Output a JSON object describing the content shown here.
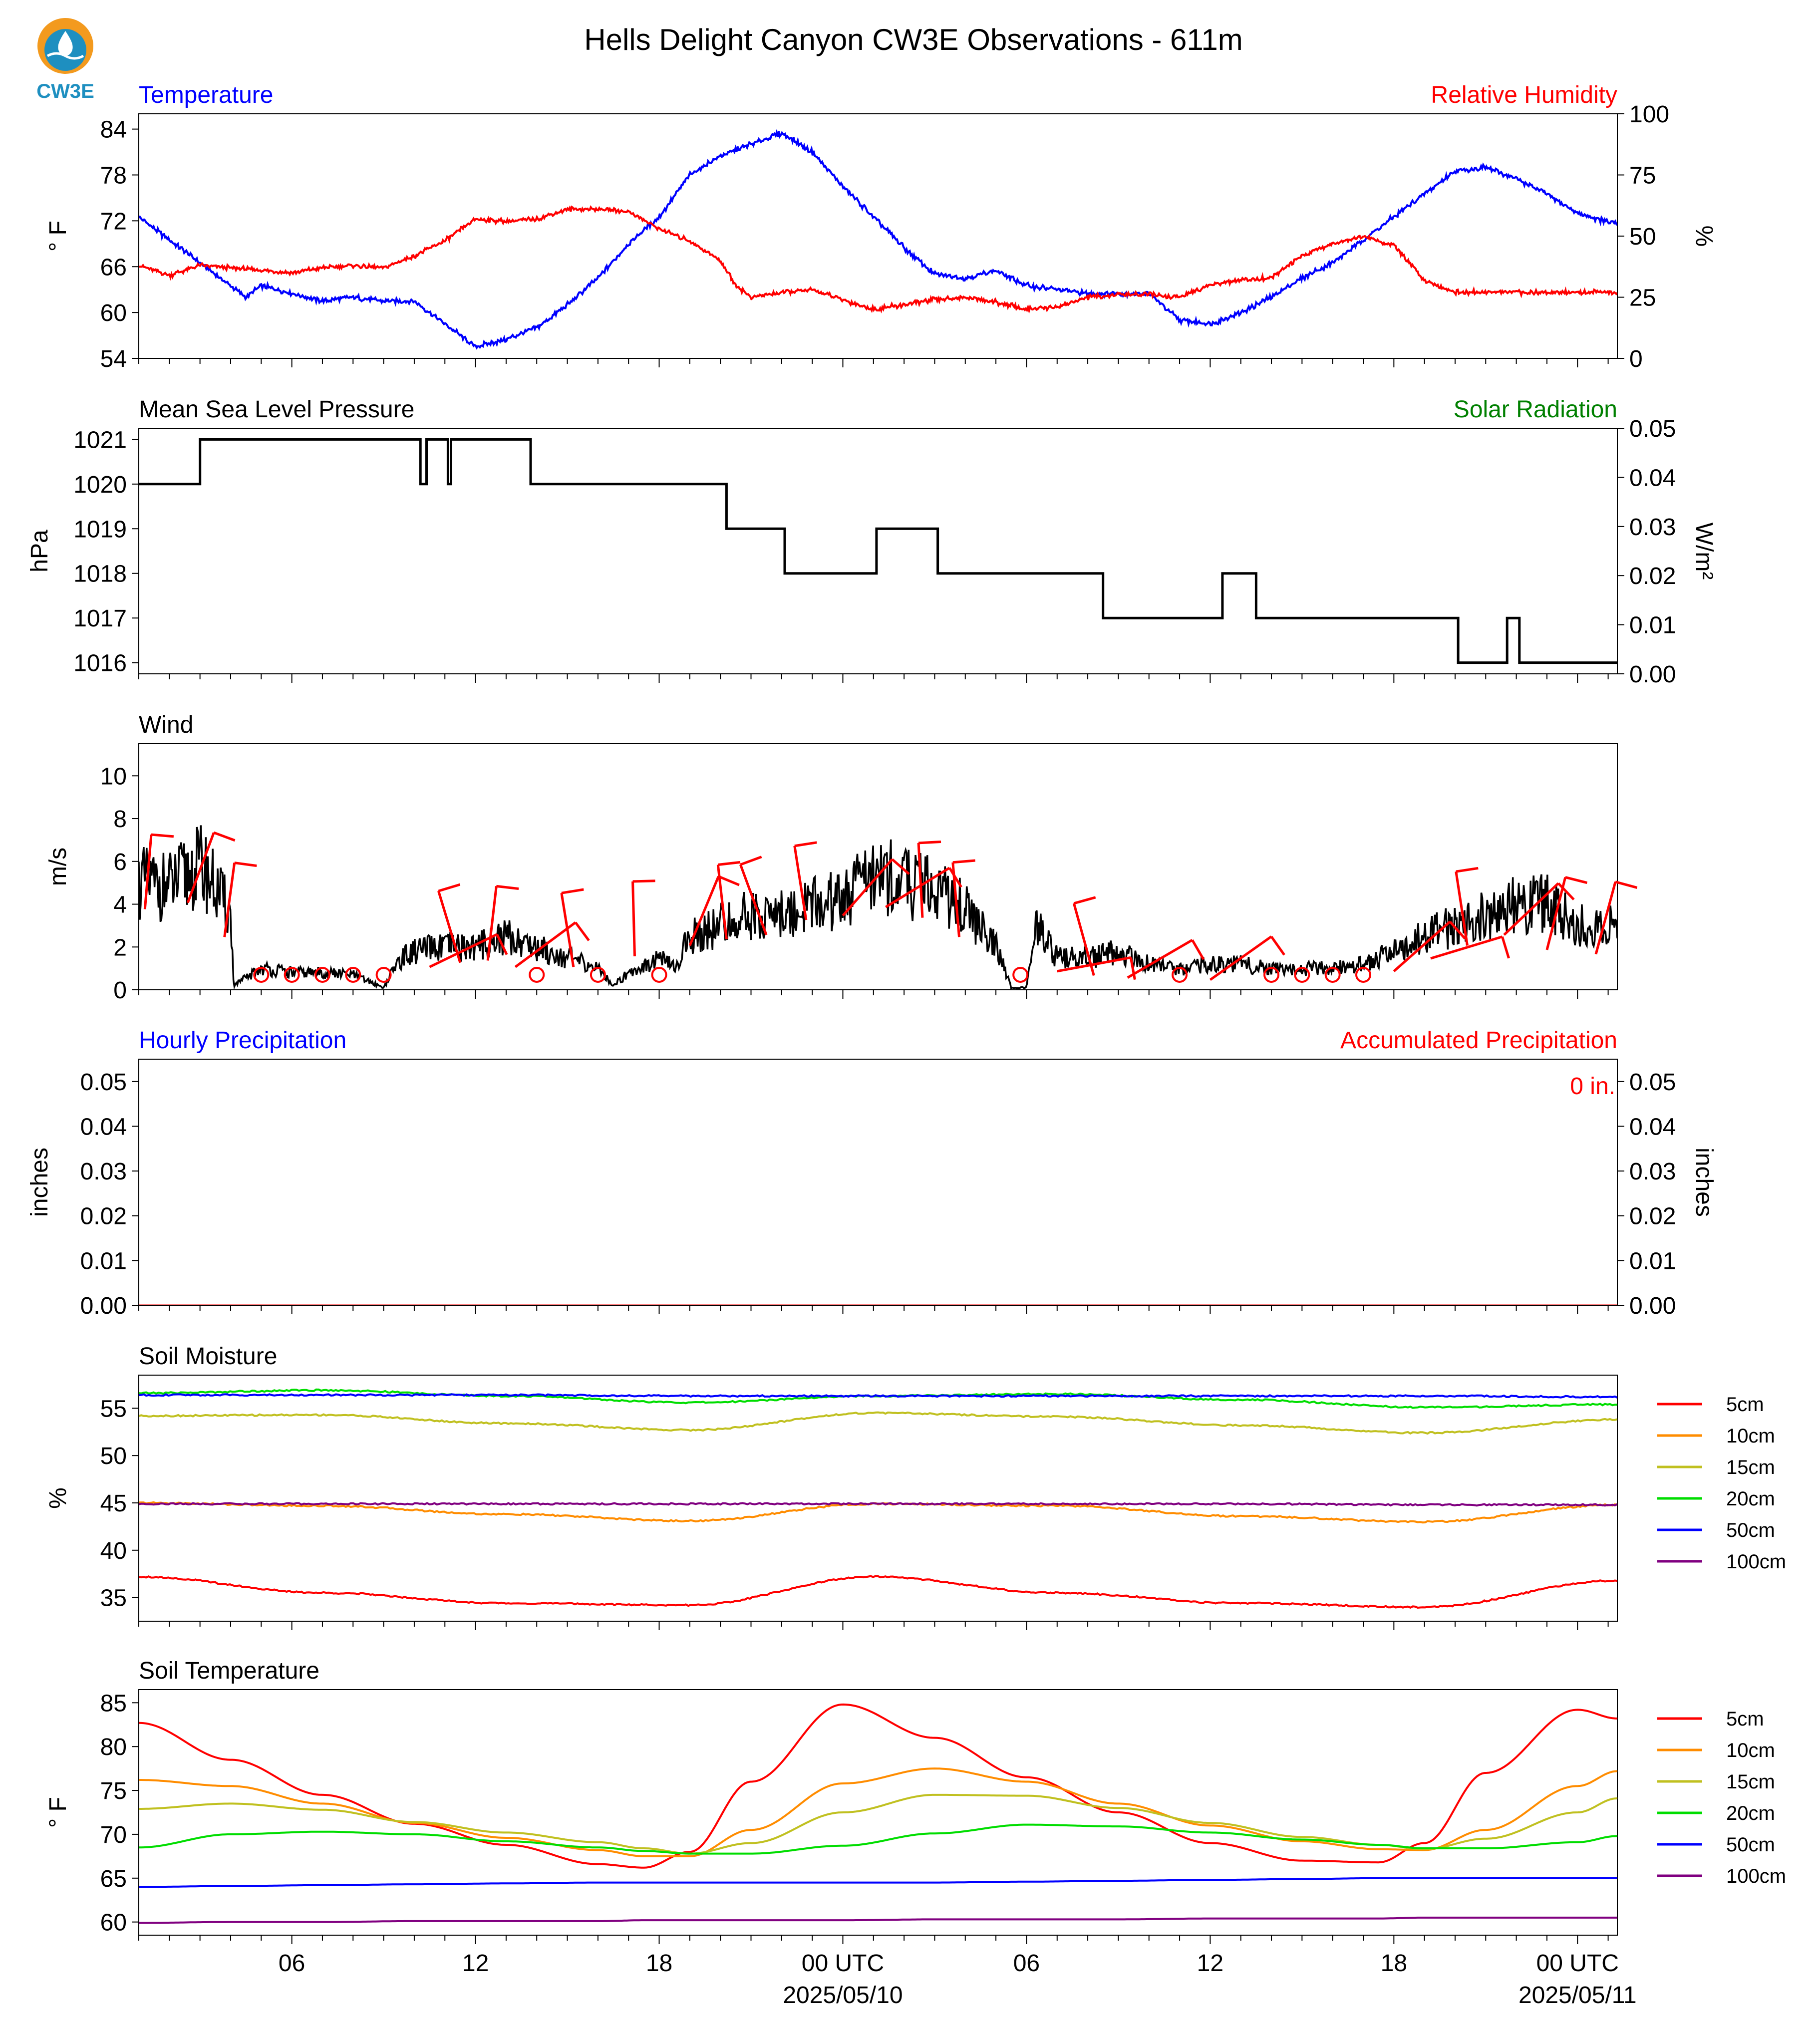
{
  "title": "Hells Delight Canyon CW3E Observations - 611m",
  "logo": {
    "text": "CW3E",
    "colors": {
      "orange": "#F39A1E",
      "blue": "#1E8FC0",
      "text": "#1E8FC0"
    }
  },
  "colors": {
    "blue": "#0000FF",
    "red": "#FF0000",
    "green": "#008000",
    "black": "#000000",
    "orange": "#FF8C00",
    "olive": "#C0C020",
    "lime": "#00DD00",
    "purple": "#800080"
  },
  "x_axis": {
    "domain_hours": [
      0,
      48.3
    ],
    "major_ticks": [
      {
        "hour": 5,
        "label": "06"
      },
      {
        "hour": 11,
        "label": "12"
      },
      {
        "hour": 17,
        "label": "18"
      },
      {
        "hour": 23,
        "label": "00 UTC"
      },
      {
        "hour": 29,
        "label": "06"
      },
      {
        "hour": 35,
        "label": "12"
      },
      {
        "hour": 41,
        "label": "18"
      },
      {
        "hour": 47,
        "label": "00 UTC"
      }
    ],
    "date_labels": [
      {
        "hour": 23,
        "label": "2025/05/10"
      },
      {
        "hour": 47,
        "label": "2025/05/11"
      }
    ]
  },
  "chart_data": [
    {
      "type": "line",
      "panel": "temperature_rh",
      "title_left": "Temperature",
      "title_right": "Relative Humidity",
      "ylabel_left": "° F",
      "ylabel_right": "%",
      "ylim_left": [
        54,
        86
      ],
      "yticks_left": [
        54,
        60,
        66,
        72,
        78,
        84
      ],
      "ylim_right": [
        0,
        100
      ],
      "yticks_right": [
        0,
        25,
        50,
        75,
        100
      ],
      "series": [
        {
          "name": "Temperature",
          "color": "#0000FF",
          "axis": "left",
          "x": [
            0,
            1,
            2,
            3,
            3.5,
            4,
            5,
            6,
            7,
            8,
            9,
            10,
            11,
            12,
            13,
            14,
            15,
            16,
            17,
            18,
            19,
            20,
            21,
            22,
            23,
            24,
            25,
            26,
            27,
            28,
            29,
            30,
            31,
            32,
            33,
            34,
            35,
            36,
            37,
            38,
            39,
            40,
            41,
            42,
            43,
            44,
            45,
            46,
            47,
            48.3
          ],
          "y": [
            72.5,
            69.5,
            66.5,
            63.5,
            62,
            63.5,
            62.5,
            61.5,
            62,
            61.5,
            61.5,
            58.5,
            55.5,
            56.5,
            58,
            61,
            64.5,
            69,
            72.5,
            78,
            80.5,
            82,
            83.5,
            81,
            76.5,
            72.5,
            68.5,
            65,
            64.5,
            65.5,
            63.5,
            63,
            62.5,
            62.5,
            62.5,
            59,
            58.5,
            60,
            62,
            64.5,
            66.5,
            69.5,
            72.5,
            75.5,
            78.5,
            79,
            77.5,
            75.5,
            73,
            71.5
          ]
        },
        {
          "name": "Relative Humidity",
          "color": "#FF0000",
          "axis": "right",
          "x": [
            0,
            1,
            2,
            3,
            4,
            5,
            6,
            7,
            8,
            9,
            10,
            11,
            12,
            13,
            14,
            15,
            16,
            17,
            18,
            19,
            19.5,
            20,
            21,
            22,
            23,
            24,
            25,
            26,
            27,
            28,
            29,
            30,
            31,
            32,
            33,
            34,
            35,
            36,
            37,
            38,
            39,
            40,
            41,
            42,
            43,
            44,
            45,
            46,
            47,
            48.3
          ],
          "y": [
            38,
            34,
            38,
            37,
            36,
            35,
            37,
            38,
            37,
            42,
            48,
            57,
            56,
            57,
            61,
            61,
            60,
            53,
            48,
            40,
            30,
            25,
            27,
            28,
            24,
            20,
            22,
            24,
            25,
            23,
            20,
            21,
            25,
            26,
            26,
            25,
            30,
            32,
            33,
            42,
            47,
            50,
            46,
            32,
            27,
            27,
            27,
            27,
            27,
            27
          ]
        }
      ]
    },
    {
      "type": "line",
      "panel": "pressure",
      "title_left": "Mean Sea Level Pressure",
      "title_right": "Solar Radiation",
      "ylabel_left": "hPa",
      "ylabel_right": "W/m²",
      "ylim_left": [
        1015.75,
        1021.25
      ],
      "yticks_left": [
        1016,
        1017,
        1018,
        1019,
        1020,
        1021
      ],
      "ylim_right": [
        0,
        0.05
      ],
      "yticks_right": [
        "0.00",
        "0.01",
        "0.02",
        "0.03",
        "0.04",
        "0.05"
      ],
      "series": [
        {
          "name": "Mean Sea Level Pressure",
          "color": "#000000",
          "axis": "left",
          "x": [
            0,
            2,
            2,
            9.2,
            9.2,
            9.4,
            9.4,
            10.1,
            10.1,
            10.2,
            10.2,
            12.8,
            12.8,
            19.2,
            19.2,
            21.1,
            21.1,
            24.1,
            24.1,
            26.1,
            26.1,
            31.5,
            31.5,
            35.4,
            35.4,
            36.5,
            36.5,
            43.1,
            43.1,
            44.7,
            44.7,
            45.1,
            45.1,
            48.3
          ],
          "y": [
            1020,
            1020,
            1021,
            1021,
            1020,
            1020,
            1021,
            1021,
            1020,
            1020,
            1021,
            1021,
            1020,
            1020,
            1019,
            1019,
            1018,
            1018,
            1019,
            1019,
            1018,
            1018,
            1017,
            1017,
            1018,
            1018,
            1017,
            1017,
            1016,
            1016,
            1017,
            1017,
            1016,
            1016
          ]
        }
      ]
    },
    {
      "type": "line",
      "panel": "wind",
      "title_left": "Wind",
      "ylabel_left": "m/s",
      "ylim_left": [
        0,
        11.5
      ],
      "yticks_left": [
        0,
        2,
        4,
        6,
        8,
        10
      ],
      "series": [
        {
          "name": "Wind Speed",
          "color": "#000000",
          "axis": "left",
          "x": [
            0,
            1,
            2,
            2.2,
            3,
            3.1,
            4,
            5,
            6,
            7,
            8,
            8.5,
            9,
            10,
            11,
            12,
            13,
            14,
            15,
            15.5,
            16,
            17,
            17.5,
            18,
            19,
            20,
            21,
            22,
            23,
            24,
            25,
            26,
            27,
            28,
            28.5,
            29,
            29.3,
            30,
            31,
            32,
            33,
            34,
            35,
            36,
            37,
            38,
            39,
            40,
            41,
            42,
            43,
            44,
            45,
            46,
            47,
            48.3
          ],
          "y": [
            5,
            4.8,
            5.8,
            5.5,
            3.5,
            0.2,
            1,
            0.8,
            0.8,
            0.7,
            0.1,
            1.4,
            1.8,
            2,
            2,
            2.5,
            2,
            1.5,
            1,
            0.2,
            0.8,
            1.5,
            1,
            2.5,
            3,
            3.5,
            3.5,
            4,
            4.2,
            5.5,
            5,
            4.8,
            3.8,
            2,
            0.1,
            0.1,
            3,
            1.5,
            1.5,
            1.8,
            1.2,
            0.9,
            1.2,
            1.2,
            1,
            1,
            1,
            1.2,
            1.8,
            2.5,
            3,
            3.5,
            4,
            4,
            3,
            3
          ]
        }
      ]
    },
    {
      "type": "line",
      "panel": "precipitation",
      "title_left": "Hourly Precipitation",
      "title_right": "Accumulated Precipitation",
      "annotation": "0 in.",
      "ylabel_left": "inches",
      "ylabel_right": "inches",
      "ylim_left": [
        0,
        0.055
      ],
      "yticks_left": [
        "0.00",
        "0.01",
        "0.02",
        "0.03",
        "0.04",
        "0.05"
      ],
      "ylim_right": [
        0,
        0.055
      ],
      "yticks_right": [
        "0.00",
        "0.01",
        "0.02",
        "0.03",
        "0.04",
        "0.05"
      ],
      "series": [
        {
          "name": "Accumulated Precipitation",
          "color": "#FF0000",
          "axis": "right",
          "x": [
            0,
            48.3
          ],
          "y": [
            0,
            0
          ]
        }
      ]
    },
    {
      "type": "line",
      "panel": "soil_moisture",
      "title_left": "Soil Moisture",
      "ylabel_left": "%",
      "ylim_left": [
        32.5,
        58.5
      ],
      "yticks_left": [
        35,
        40,
        45,
        50,
        55
      ],
      "x": [
        0,
        6,
        12,
        18,
        24,
        30,
        36,
        42,
        48.3
      ],
      "series": [
        {
          "name": "5cm",
          "color": "#FF0000",
          "values": [
            37.2,
            35.5,
            34.4,
            34.2,
            37.2,
            35.5,
            34.4,
            34,
            36.8
          ]
        },
        {
          "name": "10cm",
          "color": "#FF8C00",
          "values": [
            45,
            44.7,
            43.8,
            43.1,
            44.9,
            44.7,
            43.6,
            43,
            44.8
          ]
        },
        {
          "name": "15cm",
          "color": "#C0C020",
          "values": [
            54.2,
            54.3,
            53.4,
            52.7,
            54.5,
            54.1,
            53.2,
            52.4,
            53.8
          ]
        },
        {
          "name": "20cm",
          "color": "#00DD00",
          "values": [
            56.6,
            56.9,
            56.3,
            55.6,
            56.3,
            56.5,
            55.9,
            55.1,
            55.4
          ]
        },
        {
          "name": "50cm",
          "color": "#0000FF",
          "values": [
            56.4,
            56.4,
            56.4,
            56.3,
            56.3,
            56.3,
            56.3,
            56.3,
            56.2
          ]
        },
        {
          "name": "100cm",
          "color": "#800080",
          "values": [
            44.9,
            44.9,
            44.9,
            44.9,
            44.9,
            44.9,
            44.9,
            44.8,
            44.8
          ]
        }
      ]
    },
    {
      "type": "line",
      "panel": "soil_temperature",
      "title_left": "Soil Temperature",
      "ylabel_left": "° F",
      "ylim_left": [
        58.5,
        86.5
      ],
      "yticks_left": [
        60,
        65,
        70,
        75,
        80,
        85
      ],
      "x": [
        0,
        3,
        6,
        9,
        12,
        15,
        16.5,
        18,
        20,
        23,
        26,
        29,
        32,
        35,
        38,
        40.5,
        42,
        44,
        47,
        48.3
      ],
      "series": [
        {
          "name": "5cm",
          "color": "#FF0000",
          "values": [
            82.7,
            78.5,
            74.5,
            71.2,
            68.8,
            66.6,
            66.2,
            68,
            76,
            84.8,
            81,
            76.5,
            72.5,
            69,
            67,
            66.8,
            69,
            77,
            84.2,
            83.2
          ]
        },
        {
          "name": "10cm",
          "color": "#FF8C00",
          "values": [
            76.2,
            75.5,
            73.5,
            71.3,
            69.6,
            68.2,
            67.5,
            67.5,
            70.5,
            75.8,
            77.5,
            76,
            73.5,
            71,
            69.2,
            68.3,
            68.2,
            70.5,
            75.5,
            77.2
          ]
        },
        {
          "name": "15cm",
          "color": "#C0C020",
          "values": [
            72.9,
            73.5,
            72.8,
            71.4,
            70.2,
            69.1,
            68.4,
            67.8,
            69,
            72.5,
            74.5,
            74.4,
            73,
            71.3,
            69.7,
            68.8,
            68.3,
            69.5,
            72.5,
            74.1
          ]
        },
        {
          "name": "20cm",
          "color": "#00DD00",
          "values": [
            68.5,
            70,
            70.3,
            70,
            69.2,
            68.5,
            68.1,
            67.8,
            67.8,
            68.7,
            70.1,
            71.1,
            70.9,
            70.2,
            69.4,
            68.8,
            68.4,
            68.4,
            69.1,
            69.8
          ]
        },
        {
          "name": "50cm",
          "color": "#0000FF",
          "values": [
            64,
            64.1,
            64.2,
            64.3,
            64.4,
            64.5,
            64.5,
            64.5,
            64.5,
            64.5,
            64.5,
            64.6,
            64.7,
            64.8,
            64.9,
            65,
            65,
            65,
            65,
            65
          ]
        },
        {
          "name": "100cm",
          "color": "#800080",
          "values": [
            59.9,
            60,
            60,
            60.1,
            60.1,
            60.1,
            60.2,
            60.2,
            60.2,
            60.2,
            60.3,
            60.3,
            60.3,
            60.4,
            60.4,
            60.4,
            60.5,
            60.5,
            60.5,
            60.5
          ]
        }
      ]
    }
  ],
  "wind_barbs": [
    {
      "hour": 0.2,
      "speed": 4.7,
      "calm": false
    },
    {
      "hour": 1.6,
      "speed": 5.0,
      "calm": false
    },
    {
      "hour": 2.8,
      "speed": 3.4,
      "calm": false
    },
    {
      "hour": 4,
      "calm": true
    },
    {
      "hour": 5,
      "calm": true
    },
    {
      "hour": 6,
      "calm": true
    },
    {
      "hour": 7,
      "calm": true
    },
    {
      "hour": 8,
      "calm": true
    },
    {
      "hour": 9.5,
      "speed": 2.0,
      "calm": false
    },
    {
      "hour": 10.5,
      "speed": 2.2,
      "calm": false
    },
    {
      "hour": 11.4,
      "speed": 2.3,
      "calm": false
    },
    {
      "hour": 12.3,
      "speed": 2.0,
      "calm": false
    },
    {
      "hour": 13,
      "calm": true
    },
    {
      "hour": 14.2,
      "speed": 2.0,
      "calm": false
    },
    {
      "hour": 15,
      "calm": true
    },
    {
      "hour": 16.2,
      "speed": 2.5,
      "calm": false
    },
    {
      "hour": 17,
      "calm": true
    },
    {
      "hour": 18,
      "speed": 3.0,
      "calm": false
    },
    {
      "hour": 19.2,
      "speed": 3.3,
      "calm": false
    },
    {
      "hour": 20.5,
      "speed": 3.5,
      "calm": false
    },
    {
      "hour": 21.8,
      "speed": 4.2,
      "calm": false
    },
    {
      "hour": 23,
      "speed": 4.4,
      "calm": false
    },
    {
      "hour": 24.4,
      "speed": 4.8,
      "calm": false
    },
    {
      "hour": 25.6,
      "speed": 4.3,
      "calm": false
    },
    {
      "hour": 26.8,
      "speed": 3.4,
      "calm": false
    },
    {
      "hour": 28.8,
      "calm": true
    },
    {
      "hour": 30,
      "speed": 1.8,
      "calm": false
    },
    {
      "hour": 31.2,
      "speed": 1.6,
      "calm": false
    },
    {
      "hour": 32.3,
      "speed": 1.5,
      "calm": false
    },
    {
      "hour": 34,
      "calm": true
    },
    {
      "hour": 35,
      "speed": 1.4,
      "calm": false
    },
    {
      "hour": 37,
      "calm": true
    },
    {
      "hour": 38,
      "calm": true
    },
    {
      "hour": 39,
      "calm": true
    },
    {
      "hour": 40,
      "calm": true
    },
    {
      "hour": 41,
      "speed": 1.8,
      "calm": false
    },
    {
      "hour": 42.2,
      "speed": 2.4,
      "calm": false
    },
    {
      "hour": 43.4,
      "speed": 3.0,
      "calm": false
    },
    {
      "hour": 44.6,
      "speed": 3.5,
      "calm": false
    },
    {
      "hour": 46,
      "speed": 2.8,
      "calm": false
    },
    {
      "hour": 47.6,
      "speed": 2.6,
      "calm": false
    }
  ],
  "legend": {
    "items": [
      {
        "label": "5cm",
        "color": "#FF0000"
      },
      {
        "label": "10cm",
        "color": "#FF8C00"
      },
      {
        "label": "15cm",
        "color": "#C0C020"
      },
      {
        "label": "20cm",
        "color": "#00DD00"
      },
      {
        "label": "50cm",
        "color": "#0000FF"
      },
      {
        "label": "100cm",
        "color": "#800080"
      }
    ]
  }
}
